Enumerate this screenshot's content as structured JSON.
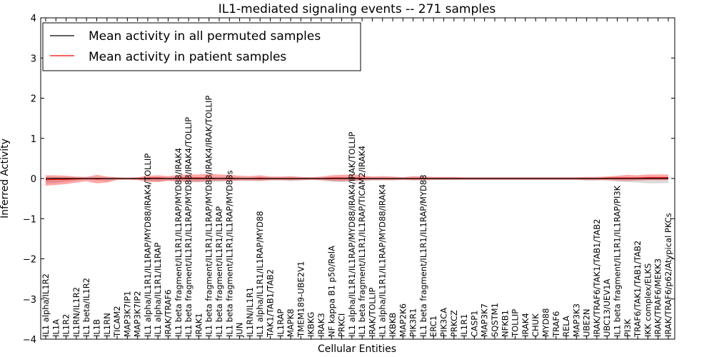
{
  "chart_data": {
    "type": "line",
    "title": "IL1-mediated signaling events -- 271 samples",
    "xlabel": "Cellular Entities",
    "ylabel": "Inferred Activity",
    "ylim": [
      -4,
      4
    ],
    "yticks": [
      -4,
      -3,
      -2,
      -1,
      0,
      1,
      2,
      3,
      4
    ],
    "grid": false,
    "legend_position": "top-left",
    "categories": [
      "IL1 alpha/IL1R2",
      "IL1A",
      "IL1R2",
      "IL1RN/IL1R2",
      "IL1 beta/IL1R2",
      "IL1B",
      "IL1RN",
      "TICAM2",
      "MAP3K7IP1",
      "MAP3K7IP2",
      "IL1 alpha/IL1R1/IL1RAP/MYD88/IRAK4/TOLLIP",
      "IL1 alpha/IL1R1/IL1RAP",
      "IRAK/TRAF6",
      "IL1 beta fragment/IL1R1/IL1RAP/MYD88/IRAK4",
      "IL1 beta fragment/IL1R1/IL1RAP/MYD88/IRAK4/TOLLIP",
      "IRAK1",
      "IL1 beta fragment/IL1R1/IL1RAP/MYD88/IRAK4/IRAK/TOLLIP",
      "IL1 beta fragment/IL1R1/IL1RAP",
      "IL1 beta fragment/IL1R1/IL1RAP/MYD88s",
      "JUN",
      "IL1RN/IL1R1",
      "IL1 alpha/IL1R1/IL1RAP/MYD88",
      "TAK1/TAB1/TAB2",
      "IL1RAP",
      "MAPK8",
      "TMEM189-UBE2V1",
      "IKBKG",
      "IRAK3",
      "NF kappa B1 p50/RelA",
      "PRKCI",
      "IL1 alpha/IL1R1/IL1RAP/MYD88/IRAK4/IRAK/TOLLIP",
      "IL1 beta fragment/IL1R1/IL1RAP/TICAM2/IRAK4",
      "IRAK/TOLLIP",
      "IL1 alpha/IL1R1/IL1RAP/MYD88/IRAK4",
      "IKBKB",
      "MAP2K6",
      "PIK3R1",
      "IL1 beta fragment/IL1R1/IL1RAP/MYD88",
      "ERC1",
      "PIK3CA",
      "PRKCZ",
      "IL1R1",
      "CASP1",
      "MAP3K7",
      "SQSTM1",
      "NFKB1",
      "TOLLIP",
      "IRAK4",
      "CHUK",
      "MYD88",
      "TRAF6",
      "RELA",
      "MAP3K3",
      "UBE2N",
      "IRAK/TRAF6/TAK1/TAB1/TAB2",
      "UBC13/UEV1A",
      "IL1 beta fragment/IL1R1/IL1RAP/PI3K",
      "PI3K",
      "TRAF6/TAK1/TAB1/TAB2",
      "IKK complex/ELKS",
      "IRAK/TRAF6/MEKK3",
      "IRAK/TRAF6/p62/Atypical PKCs"
    ],
    "series": [
      {
        "name": "Mean activity in all permuted samples",
        "color": "#000000",
        "values": [
          0.0,
          0.0,
          0.0,
          0.0,
          0.0,
          0.0,
          0.0,
          0.0,
          0.0,
          0.0,
          0.0,
          0.0,
          0.0,
          0.0,
          0.0,
          0.0,
          0.0,
          0.0,
          0.0,
          0.0,
          0.0,
          0.0,
          0.0,
          0.0,
          0.0,
          0.0,
          0.0,
          0.0,
          0.0,
          0.0,
          0.0,
          0.0,
          0.0,
          0.0,
          0.0,
          0.0,
          0.0,
          0.0,
          0.0,
          0.0,
          0.0,
          0.0,
          0.0,
          0.0,
          0.0,
          0.0,
          0.0,
          0.0,
          0.0,
          0.0,
          0.0,
          0.0,
          0.0,
          0.0,
          0.0,
          0.0,
          0.0,
          0.0,
          0.0,
          0.0,
          0.0,
          0.0
        ],
        "band_low": [
          -0.12,
          -0.11,
          -0.08,
          -0.05,
          -0.03,
          -0.04,
          -0.06,
          -0.02,
          -0.02,
          -0.03,
          -0.06,
          -0.07,
          -0.05,
          -0.08,
          -0.09,
          -0.09,
          -0.08,
          -0.08,
          -0.07,
          -0.06,
          -0.06,
          -0.06,
          -0.05,
          -0.05,
          -0.06,
          -0.05,
          -0.04,
          -0.05,
          -0.08,
          -0.09,
          -0.07,
          -0.06,
          -0.05,
          -0.05,
          -0.05,
          -0.04,
          -0.05,
          -0.05,
          -0.04,
          -0.04,
          -0.04,
          -0.04,
          -0.04,
          -0.04,
          -0.04,
          -0.04,
          -0.04,
          -0.04,
          -0.04,
          -0.04,
          -0.04,
          -0.04,
          -0.04,
          -0.05,
          -0.05,
          -0.05,
          -0.08,
          -0.09,
          -0.1,
          -0.12,
          -0.12,
          -0.11
        ],
        "band_high": [
          0.04,
          0.04,
          0.03,
          0.02,
          0.02,
          0.02,
          0.02,
          0.01,
          0.01,
          0.01,
          0.02,
          0.03,
          0.02,
          0.03,
          0.03,
          0.03,
          0.03,
          0.03,
          0.03,
          0.02,
          0.02,
          0.02,
          0.02,
          0.02,
          0.02,
          0.02,
          0.02,
          0.02,
          0.03,
          0.03,
          0.03,
          0.02,
          0.02,
          0.02,
          0.02,
          0.02,
          0.02,
          0.02,
          0.02,
          0.02,
          0.02,
          0.02,
          0.02,
          0.02,
          0.02,
          0.02,
          0.02,
          0.02,
          0.02,
          0.02,
          0.02,
          0.02,
          0.02,
          0.02,
          0.02,
          0.02,
          0.03,
          0.03,
          0.03,
          0.04,
          0.04,
          0.04
        ]
      },
      {
        "name": "Mean activity in patient samples",
        "color": "#ff0000",
        "values": [
          -0.03,
          -0.02,
          -0.02,
          -0.01,
          0.0,
          -0.01,
          0.0,
          0.0,
          0.0,
          0.0,
          0.01,
          0.01,
          0.0,
          0.01,
          0.01,
          0.01,
          0.01,
          0.0,
          0.01,
          0.0,
          0.0,
          0.01,
          0.0,
          0.0,
          0.0,
          0.0,
          0.0,
          0.0,
          0.01,
          0.01,
          0.01,
          0.01,
          0.0,
          0.0,
          0.0,
          0.0,
          0.0,
          0.0,
          0.0,
          0.0,
          0.0,
          0.0,
          0.0,
          0.0,
          0.0,
          0.0,
          0.0,
          0.0,
          0.0,
          0.0,
          0.0,
          0.0,
          0.0,
          0.0,
          0.0,
          0.01,
          0.01,
          0.01,
          0.01,
          0.02,
          0.02,
          0.02
        ],
        "band_low": [
          -0.18,
          -0.16,
          -0.14,
          -0.1,
          -0.07,
          -0.12,
          -0.1,
          -0.04,
          -0.03,
          -0.04,
          -0.08,
          -0.09,
          -0.06,
          -0.07,
          -0.08,
          -0.08,
          -0.07,
          -0.06,
          -0.06,
          -0.05,
          -0.05,
          -0.06,
          -0.04,
          -0.04,
          -0.05,
          -0.04,
          -0.03,
          -0.04,
          -0.06,
          -0.07,
          -0.06,
          -0.05,
          -0.04,
          -0.04,
          -0.04,
          -0.03,
          -0.04,
          -0.04,
          -0.03,
          -0.03,
          -0.03,
          -0.03,
          -0.03,
          -0.03,
          -0.03,
          -0.03,
          -0.03,
          -0.03,
          -0.03,
          -0.03,
          -0.03,
          -0.03,
          -0.03,
          -0.04,
          -0.04,
          -0.04,
          -0.05,
          -0.06,
          -0.05,
          -0.04,
          -0.04,
          -0.04
        ],
        "band_high": [
          0.08,
          0.08,
          0.07,
          0.05,
          0.04,
          0.09,
          0.05,
          0.03,
          0.02,
          0.03,
          0.07,
          0.08,
          0.06,
          0.09,
          0.1,
          0.1,
          0.12,
          0.1,
          0.09,
          0.07,
          0.06,
          0.08,
          0.05,
          0.05,
          0.06,
          0.04,
          0.03,
          0.05,
          0.08,
          0.09,
          0.1,
          0.08,
          0.05,
          0.06,
          0.05,
          0.03,
          0.06,
          0.05,
          0.04,
          0.04,
          0.04,
          0.03,
          0.03,
          0.03,
          0.03,
          0.03,
          0.03,
          0.03,
          0.03,
          0.03,
          0.03,
          0.03,
          0.03,
          0.04,
          0.04,
          0.05,
          0.07,
          0.09,
          0.08,
          0.1,
          0.1,
          0.1
        ]
      }
    ]
  }
}
